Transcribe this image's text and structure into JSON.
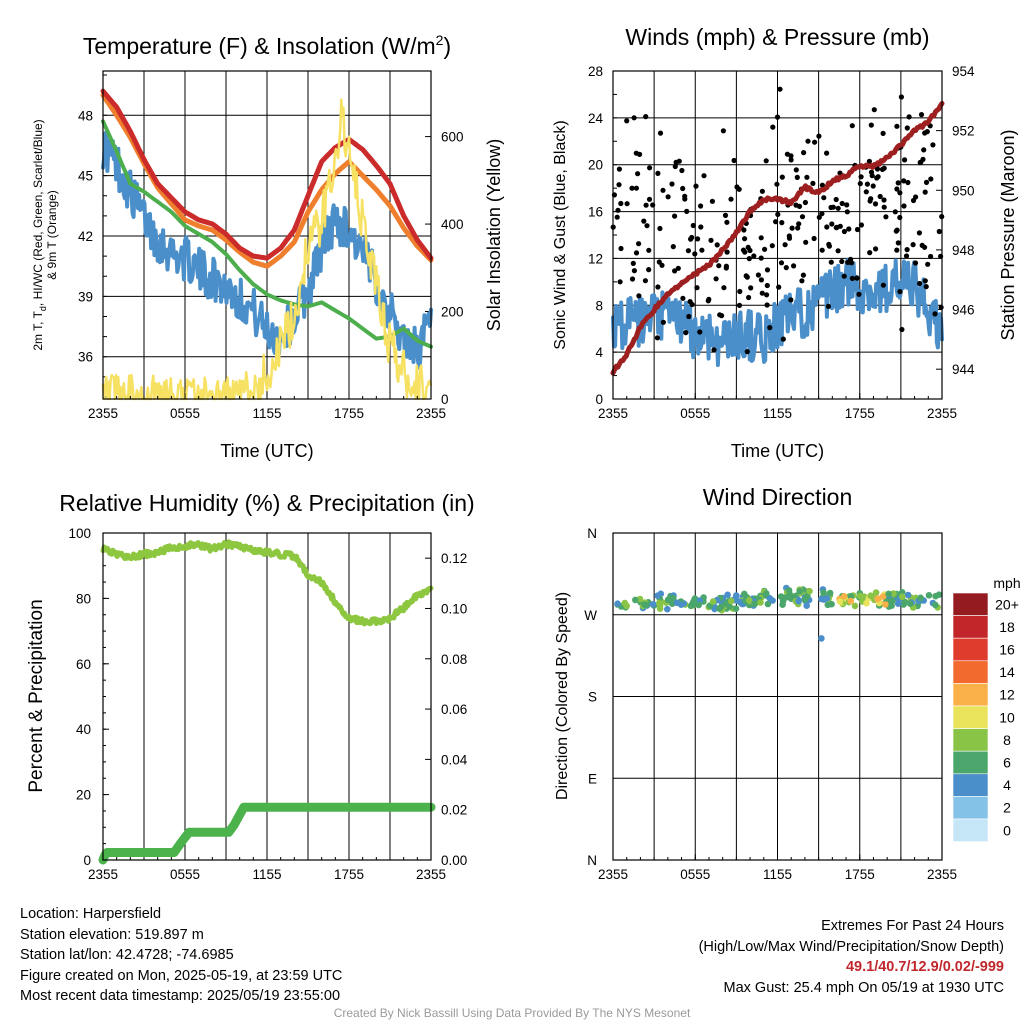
{
  "colors": {
    "red": "#cc2b2b",
    "orange": "#f07f2d",
    "green": "#4cae4c",
    "blue": "#4a8fca",
    "yellow": "#f6e163",
    "black": "#000000",
    "maroon": "#9e1f1f",
    "rh": "#8dc63f",
    "precip": "#4cb34c"
  },
  "chart_data": [
    {
      "type": "line",
      "id": "temp",
      "title_parts": [
        "Temperature (F) & Insolation (W/m",
        "2",
        ")"
      ],
      "xlabel": "Time (UTC)",
      "ylabel_lines": [
        "2m T, T",
        "d",
        ", HI/WC (Red, Green, Scarlet/Blue)",
        "& 9m T (Orange)"
      ],
      "ylabel_right": "Solar Insolation (Yellow)",
      "x_ticks": [
        "2355",
        "0555",
        "1155",
        "1755",
        "2355"
      ],
      "y_ticks": [
        "36",
        "39",
        "42",
        "45",
        "48"
      ],
      "ylim": [
        33.9,
        50.2
      ],
      "y2_ticks": [
        "0",
        "200",
        "400",
        "600"
      ],
      "y2lim": [
        0,
        750
      ],
      "grid": true,
      "series": [
        {
          "color": "red",
          "width": 5,
          "xy": [
            [
              0,
              49.2
            ],
            [
              1,
              48.4
            ],
            [
              2,
              47.2
            ],
            [
              3,
              45.8
            ],
            [
              4,
              44.6
            ],
            [
              5,
              43.9
            ],
            [
              6,
              43.2
            ],
            [
              7,
              42.8
            ],
            [
              8,
              42.6
            ],
            [
              9,
              42.1
            ],
            [
              10,
              41.4
            ],
            [
              11,
              41.0
            ],
            [
              12,
              40.9
            ],
            [
              13,
              41.4
            ],
            [
              14,
              42.3
            ],
            [
              15,
              44.0
            ],
            [
              16,
              45.7
            ],
            [
              17,
              46.4
            ],
            [
              18,
              46.8
            ],
            [
              19,
              46.3
            ],
            [
              20,
              45.5
            ],
            [
              21,
              44.6
            ],
            [
              22,
              43.0
            ],
            [
              23,
              41.8
            ],
            [
              24,
              40.9
            ]
          ]
        },
        {
          "color": "orange",
          "width": 5,
          "xy": [
            [
              0,
              49.0
            ],
            [
              1,
              48.0
            ],
            [
              2,
              46.9
            ],
            [
              3,
              45.6
            ],
            [
              4,
              44.4
            ],
            [
              5,
              43.6
            ],
            [
              6,
              42.8
            ],
            [
              7,
              42.5
            ],
            [
              8,
              42.3
            ],
            [
              9,
              41.8
            ],
            [
              10,
              41.2
            ],
            [
              11,
              40.7
            ],
            [
              12,
              40.5
            ],
            [
              13,
              41.0
            ],
            [
              14,
              41.7
            ],
            [
              15,
              43.2
            ],
            [
              16,
              44.3
            ],
            [
              17,
              45.1
            ],
            [
              18,
              45.7
            ],
            [
              19,
              45.0
            ],
            [
              20,
              44.3
            ],
            [
              21,
              43.5
            ],
            [
              22,
              42.4
            ],
            [
              23,
              41.5
            ],
            [
              24,
              40.8
            ]
          ]
        },
        {
          "color": "green",
          "width": 4,
          "xy": [
            [
              0,
              47.7
            ],
            [
              1,
              46.2
            ],
            [
              2,
              44.6
            ],
            [
              3,
              44.2
            ],
            [
              4,
              43.7
            ],
            [
              5,
              43.2
            ],
            [
              6,
              42.5
            ],
            [
              7,
              42.1
            ],
            [
              8,
              41.7
            ],
            [
              9,
              41.1
            ],
            [
              10,
              40.3
            ],
            [
              11,
              39.6
            ],
            [
              12,
              39.1
            ],
            [
              13,
              38.8
            ],
            [
              14,
              38.6
            ],
            [
              15,
              38.5
            ],
            [
              16,
              38.7
            ],
            [
              17,
              38.3
            ],
            [
              18,
              37.9
            ],
            [
              19,
              37.4
            ],
            [
              20,
              36.9
            ],
            [
              21,
              37.0
            ],
            [
              22,
              37.4
            ],
            [
              23,
              36.8
            ],
            [
              24,
              36.5
            ]
          ]
        },
        {
          "color": "blue",
          "width": 4,
          "noise": 1.1,
          "xy": [
            [
              0,
              46.5
            ],
            [
              1,
              45.6
            ],
            [
              2,
              44.2
            ],
            [
              3,
              42.9
            ],
            [
              4,
              41.8
            ],
            [
              5,
              41.2
            ],
            [
              6,
              40.9
            ],
            [
              7,
              40.3
            ],
            [
              8,
              39.9
            ],
            [
              9,
              39.5
            ],
            [
              10,
              38.9
            ],
            [
              11,
              38.3
            ],
            [
              12,
              37.3
            ],
            [
              13,
              37.0
            ],
            [
              14,
              37.9
            ],
            [
              15,
              39.3
            ],
            [
              16,
              41.5
            ],
            [
              17,
              42.8
            ],
            [
              18,
              42.3
            ],
            [
              19,
              41.1
            ],
            [
              20,
              39.8
            ],
            [
              21,
              38.2
            ],
            [
              22,
              36.8
            ],
            [
              23,
              36.4
            ],
            [
              24,
              37.6
            ]
          ]
        },
        {
          "color": "yellow",
          "width": 2.5,
          "axis": "y2",
          "noise": 55,
          "xy": [
            [
              0,
              0
            ],
            [
              3,
              0
            ],
            [
              6,
              0
            ],
            [
              9,
              0
            ],
            [
              10,
              3
            ],
            [
              11,
              15
            ],
            [
              12,
              60
            ],
            [
              13,
              120
            ],
            [
              14,
              180
            ],
            [
              15,
              360
            ],
            [
              16,
              400
            ],
            [
              17,
              560
            ],
            [
              17.5,
              650
            ],
            [
              18,
              550
            ],
            [
              19,
              400
            ],
            [
              20,
              260
            ],
            [
              21,
              120
            ],
            [
              22,
              60
            ],
            [
              23,
              30
            ],
            [
              24,
              10
            ]
          ]
        }
      ]
    },
    {
      "type": "scatter",
      "id": "winds",
      "title": "Winds (mph) & Pressure (mb)",
      "xlabel": "Time (UTC)",
      "ylabel": "Sonic Wind & Gust (Blue, Black)",
      "ylabel_right": "Station Pressure (Maroon)",
      "x_ticks": [
        "2355",
        "0555",
        "1155",
        "1755",
        "2355"
      ],
      "y_ticks": [
        "0",
        "4",
        "8",
        "12",
        "16",
        "20",
        "24",
        "28"
      ],
      "ylim": [
        0,
        28
      ],
      "y2_ticks": [
        "944",
        "946",
        "948",
        "950",
        "952",
        "954"
      ],
      "y2lim": [
        943,
        954
      ],
      "grid": true,
      "wind_series": {
        "color": "blue",
        "width": 4,
        "noise": 2.2,
        "xy": [
          [
            0,
            6.5
          ],
          [
            2,
            6.5
          ],
          [
            4,
            7.2
          ],
          [
            5,
            6.5
          ],
          [
            6,
            5.5
          ],
          [
            7,
            5.5
          ],
          [
            8,
            4.8
          ],
          [
            9,
            5.5
          ],
          [
            10,
            5.5
          ],
          [
            11,
            5.0
          ],
          [
            12,
            6.5
          ],
          [
            14,
            7.5
          ],
          [
            15,
            8.0
          ],
          [
            16,
            9.0
          ],
          [
            17,
            10.0
          ],
          [
            18,
            9.5
          ],
          [
            19,
            9.0
          ],
          [
            20,
            9.5
          ],
          [
            21,
            10.0
          ],
          [
            22,
            9.5
          ],
          [
            23,
            7.5
          ],
          [
            24,
            5.5
          ]
        ]
      },
      "gust_series": {
        "color": "black",
        "radius": 2.6,
        "count": 290,
        "mean_xy": [
          [
            0,
            16
          ],
          [
            2,
            16
          ],
          [
            4,
            15
          ],
          [
            6,
            12
          ],
          [
            8,
            12
          ],
          [
            10,
            13
          ],
          [
            12,
            15
          ],
          [
            14,
            15
          ],
          [
            16,
            16
          ],
          [
            18,
            17
          ],
          [
            20,
            17
          ],
          [
            22,
            16
          ],
          [
            24,
            14
          ]
        ],
        "spread": 4.2
      },
      "pressure_series": {
        "color": "maroon",
        "width": 5,
        "xy": [
          [
            0,
            943.9
          ],
          [
            1,
            944.5
          ],
          [
            2,
            945.4
          ],
          [
            3,
            946.0
          ],
          [
            4,
            946.5
          ],
          [
            5,
            946.9
          ],
          [
            6,
            947.2
          ],
          [
            7,
            947.5
          ],
          [
            8,
            948.0
          ],
          [
            9,
            948.6
          ],
          [
            10,
            949.3
          ],
          [
            11,
            949.7
          ],
          [
            12,
            949.7
          ],
          [
            13,
            949.6
          ],
          [
            14,
            950.1
          ],
          [
            15,
            949.9
          ],
          [
            16,
            950.3
          ],
          [
            17,
            950.5
          ],
          [
            18,
            950.8
          ],
          [
            19,
            950.8
          ],
          [
            20,
            951.1
          ],
          [
            21,
            951.5
          ],
          [
            22,
            952.0
          ],
          [
            23,
            952.3
          ],
          [
            24,
            952.9
          ]
        ]
      }
    },
    {
      "type": "line",
      "id": "rh",
      "title": "Relative Humidity (%) & Precipitation (in)",
      "ylabel": "Percent & Precipitation",
      "x_ticks": [
        "2355",
        "0555",
        "1155",
        "1755",
        "2355"
      ],
      "y_ticks": [
        "0",
        "20",
        "40",
        "60",
        "80",
        "100"
      ],
      "ylim": [
        0,
        100
      ],
      "y2_ticks": [
        "0.00",
        "0.02",
        "0.04",
        "0.06",
        "0.08",
        "0.10",
        "0.12"
      ],
      "y2lim": [
        0,
        0.13
      ],
      "grid": true,
      "rh_series": {
        "color": "rh",
        "width": 5,
        "noise": 0.9,
        "xy": [
          [
            0,
            95
          ],
          [
            1,
            93.5
          ],
          [
            2,
            92.5
          ],
          [
            3,
            93.5
          ],
          [
            4,
            94
          ],
          [
            5,
            95.5
          ],
          [
            6,
            96
          ],
          [
            7,
            96.5
          ],
          [
            8,
            95
          ],
          [
            9,
            96.5
          ],
          [
            10,
            96
          ],
          [
            11,
            94.5
          ],
          [
            12,
            94
          ],
          [
            13,
            93.5
          ],
          [
            14,
            93
          ],
          [
            15,
            87
          ],
          [
            16,
            85
          ],
          [
            17,
            79
          ],
          [
            18,
            74
          ],
          [
            19,
            73
          ],
          [
            20,
            73
          ],
          [
            21,
            74
          ],
          [
            22,
            77
          ],
          [
            23,
            81
          ],
          [
            24,
            82.5
          ]
        ]
      },
      "precip_series": {
        "color": "precip",
        "width": 9,
        "xy": [
          [
            0,
            0.0
          ],
          [
            0.15,
            0.002
          ],
          [
            0.3,
            0.003
          ],
          [
            5.2,
            0.003
          ],
          [
            5.6,
            0.006
          ],
          [
            6.0,
            0.009
          ],
          [
            6.3,
            0.011
          ],
          [
            9.2,
            0.011
          ],
          [
            9.6,
            0.014
          ],
          [
            10.0,
            0.018
          ],
          [
            10.3,
            0.021
          ],
          [
            24,
            0.021
          ]
        ]
      }
    },
    {
      "type": "scatter",
      "id": "dir",
      "title": "Wind Direction",
      "ylabel": "Direction (Colored By Speed)",
      "x_ticks": [
        "2355",
        "0555",
        "1155",
        "1755",
        "2355"
      ],
      "y_ticks": [
        "N",
        "E",
        "S",
        "W",
        "N"
      ],
      "ylim": [
        0,
        360
      ],
      "grid": true,
      "points": {
        "radius": 3.3,
        "count": 240,
        "mean_xy": [
          [
            0,
            278
          ],
          [
            3,
            284
          ],
          [
            6,
            283
          ],
          [
            9,
            283
          ],
          [
            12,
            289
          ],
          [
            15,
            290
          ],
          [
            18,
            288
          ],
          [
            21,
            287
          ],
          [
            24,
            285
          ]
        ],
        "spread": 5.5,
        "outlier": [
          15.2,
          244
        ]
      },
      "colorbar": {
        "title": "mph",
        "labels": [
          "0",
          "2",
          "4",
          "6",
          "8",
          "10",
          "12",
          "14",
          "16",
          "18",
          "20+"
        ],
        "colors": [
          "#c5e6f7",
          "#85c2e8",
          "#4a8fca",
          "#4aa66a",
          "#8ac447",
          "#e8e35a",
          "#f9b048",
          "#f26a2e",
          "#e03c2e",
          "#c2262b",
          "#941b20"
        ]
      }
    }
  ],
  "info_left": {
    "location": "Location: Harpersfield",
    "elevation": "Station elevation: 519.897 m",
    "latlon": "Station lat/lon: 42.4728; -74.6985",
    "created": "Figure created on Mon, 2025-05-19, at 23:59 UTC",
    "recent": "Most recent data timestamp: 2025/05/19 23:55:00"
  },
  "info_right": {
    "heading": "Extremes For Past 24 Hours",
    "subheading": "(High/Low/Max Wind/Precipitation/Snow Depth)",
    "extremes": "49.1/40.7/12.9/0.02/-999",
    "gust": "Max Gust: 25.4 mph On 05/19 at 1930 UTC"
  },
  "credit": "Created By Nick Bassill Using Data Provided By The NYS Mesonet"
}
